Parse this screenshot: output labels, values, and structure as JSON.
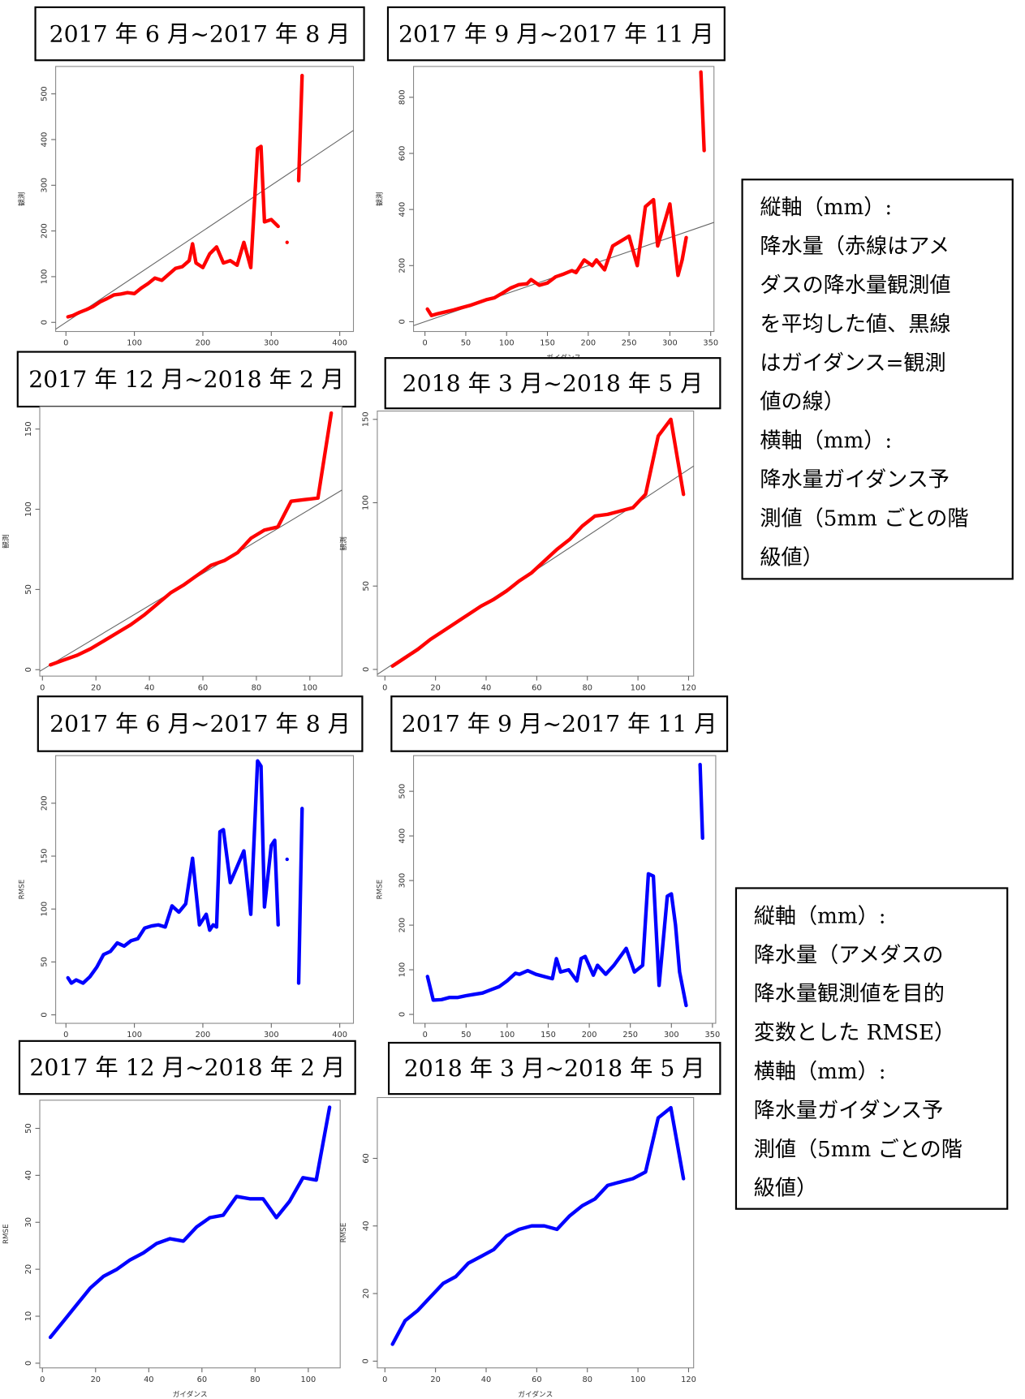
{
  "chart_data": [
    {
      "type": "line",
      "title": "2017 年 6 月~2017 年 8 月",
      "xlabel": "ガイダンス",
      "ylabel": "観測",
      "color": "#ff0000",
      "diagonal": true,
      "x": [
        3,
        10,
        20,
        30,
        40,
        50,
        60,
        70,
        80,
        90,
        100,
        110,
        120,
        130,
        140,
        150,
        160,
        170,
        180,
        185,
        190,
        200,
        210,
        220,
        230,
        240,
        250,
        260,
        270,
        280,
        285,
        290,
        300,
        310,
        null,
        323,
        null,
        340,
        345
      ],
      "values": [
        12,
        15,
        22,
        28,
        35,
        45,
        52,
        60,
        62,
        65,
        63,
        75,
        85,
        97,
        92,
        105,
        118,
        122,
        135,
        172,
        130,
        120,
        150,
        165,
        130,
        135,
        125,
        175,
        120,
        380,
        385,
        220,
        225,
        210,
        null,
        175,
        null,
        310,
        540
      ],
      "xlim": [
        -15,
        420
      ],
      "ylim": [
        -20,
        560
      ],
      "xticks": [
        0,
        100,
        200,
        300,
        400
      ],
      "yticks": [
        0,
        100,
        200,
        300,
        400,
        500
      ]
    },
    {
      "type": "line",
      "title": "2017 年 9 月~2017 年 11 月",
      "xlabel": "ガイダンス",
      "ylabel": "観測",
      "color": "#ff0000",
      "diagonal": true,
      "x": [
        3,
        8,
        15,
        25,
        35,
        45,
        55,
        65,
        75,
        85,
        95,
        105,
        115,
        125,
        130,
        140,
        150,
        160,
        170,
        180,
        185,
        195,
        205,
        210,
        220,
        230,
        250,
        260,
        270,
        280,
        285,
        300,
        310,
        315,
        320,
        null,
        338,
        342
      ],
      "values": [
        45,
        22,
        28,
        35,
        42,
        50,
        58,
        68,
        78,
        85,
        102,
        120,
        132,
        135,
        150,
        130,
        138,
        160,
        170,
        182,
        175,
        220,
        200,
        220,
        185,
        270,
        305,
        200,
        410,
        435,
        270,
        420,
        165,
        220,
        300,
        null,
        890,
        610
      ],
      "xlim": [
        -14,
        354
      ],
      "ylim": [
        -35,
        910
      ],
      "xticks": [
        0,
        50,
        100,
        150,
        200,
        250,
        300,
        350
      ],
      "yticks": [
        0,
        200,
        400,
        600,
        800
      ]
    },
    {
      "type": "line",
      "title": "2017 年 12 月~2018 年 2 月",
      "xlabel": "ガイダンス",
      "ylabel": "観測",
      "color": "#ff0000",
      "diagonal": true,
      "x": [
        3,
        8,
        13,
        18,
        23,
        28,
        33,
        38,
        43,
        48,
        53,
        58,
        63,
        68,
        73,
        78,
        83,
        88,
        93,
        98,
        103,
        108
      ],
      "values": [
        3,
        6,
        9,
        13,
        18,
        23,
        28,
        34,
        41,
        48,
        53,
        59,
        65,
        68,
        73,
        82,
        87,
        89,
        105,
        106,
        107,
        160
      ],
      "xlim": [
        -1,
        112
      ],
      "ylim": [
        -4,
        164
      ],
      "xticks": [
        0,
        20,
        40,
        60,
        80,
        100
      ],
      "yticks": [
        0,
        50,
        100,
        150
      ]
    },
    {
      "type": "line",
      "title": "2018 年 3 月~2018 年 5 月",
      "xlabel": "ガイダンス",
      "ylabel": "観測",
      "color": "#ff0000",
      "diagonal": true,
      "x": [
        3,
        8,
        13,
        18,
        23,
        28,
        33,
        38,
        43,
        48,
        53,
        58,
        63,
        68,
        73,
        78,
        83,
        88,
        93,
        98,
        103,
        108,
        113,
        118
      ],
      "values": [
        2,
        7,
        12,
        18,
        23,
        28,
        33,
        38,
        42,
        47,
        53,
        58,
        65,
        72,
        78,
        86,
        92,
        93,
        95,
        97,
        105,
        140,
        150,
        105
      ],
      "xlim": [
        -3,
        122
      ],
      "ylim": [
        -4,
        155
      ],
      "xticks": [
        0,
        20,
        40,
        60,
        80,
        100,
        120
      ],
      "yticks": [
        0,
        50,
        100,
        150
      ]
    },
    {
      "type": "line",
      "title": "2017 年 6 月~2017 年 8 月",
      "xlabel": "ガイダンス",
      "ylabel": "RMSE",
      "color": "#0000ff",
      "diagonal": false,
      "x": [
        3,
        8,
        15,
        25,
        35,
        45,
        55,
        65,
        75,
        85,
        95,
        105,
        115,
        125,
        135,
        145,
        155,
        165,
        175,
        185,
        195,
        205,
        210,
        215,
        220,
        225,
        230,
        240,
        250,
        260,
        270,
        280,
        285,
        290,
        300,
        305,
        310,
        null,
        323,
        null,
        340,
        345
      ],
      "values": [
        35,
        30,
        33,
        30,
        36,
        45,
        57,
        60,
        68,
        65,
        70,
        72,
        82,
        84,
        85,
        83,
        103,
        97,
        105,
        148,
        85,
        95,
        80,
        85,
        83,
        173,
        175,
        125,
        140,
        155,
        95,
        240,
        235,
        102,
        160,
        165,
        85,
        null,
        147,
        null,
        30,
        195
      ],
      "xlim": [
        -15,
        420
      ],
      "ylim": [
        -8,
        245
      ],
      "xticks": [
        0,
        100,
        200,
        300,
        400
      ],
      "yticks": [
        0,
        50,
        100,
        150,
        200
      ]
    },
    {
      "type": "line",
      "title": "2017 年 9 月~2017 年 11 月",
      "xlabel": "ガイダンス",
      "ylabel": "RMSE",
      "color": "#0000ff",
      "diagonal": false,
      "x": [
        3,
        10,
        20,
        30,
        40,
        50,
        60,
        70,
        80,
        90,
        100,
        110,
        115,
        125,
        135,
        145,
        155,
        160,
        165,
        175,
        185,
        190,
        195,
        205,
        210,
        220,
        230,
        245,
        255,
        265,
        272,
        278,
        285,
        295,
        300,
        305,
        310,
        318,
        null,
        335,
        338
      ],
      "values": [
        85,
        32,
        33,
        38,
        38,
        42,
        45,
        48,
        55,
        62,
        75,
        92,
        90,
        98,
        90,
        85,
        80,
        125,
        95,
        100,
        75,
        125,
        130,
        88,
        110,
        90,
        110,
        148,
        95,
        110,
        315,
        310,
        65,
        265,
        270,
        200,
        95,
        20,
        null,
        560,
        395
      ],
      "xlim": [
        -14,
        354
      ],
      "ylim": [
        -20,
        580
      ],
      "xticks": [
        0,
        50,
        100,
        150,
        200,
        250,
        300,
        350
      ],
      "yticks": [
        0,
        100,
        200,
        300,
        400,
        500
      ]
    },
    {
      "type": "line",
      "title": "2017 年 12 月~2018 年 2 月",
      "xlabel": "ガイダンス",
      "ylabel": "RMSE",
      "color": "#0000ff",
      "diagonal": false,
      "x": [
        3,
        8,
        13,
        18,
        23,
        28,
        33,
        38,
        43,
        48,
        53,
        58,
        63,
        68,
        73,
        78,
        83,
        88,
        93,
        98,
        103,
        108
      ],
      "values": [
        5.5,
        9,
        12.5,
        16,
        18.5,
        20,
        22,
        23.5,
        25.5,
        26.5,
        26,
        29,
        31,
        31.5,
        35.5,
        35,
        35,
        31,
        34.5,
        39.5,
        39,
        54.5
      ],
      "xlim": [
        -1,
        112
      ],
      "ylim": [
        -1,
        56
      ],
      "xticks": [
        0,
        20,
        40,
        60,
        80,
        100
      ],
      "yticks": [
        0,
        10,
        20,
        30,
        40,
        50
      ]
    },
    {
      "type": "line",
      "title": "2018 年 3 月~2018 年 5 月",
      "xlabel": "ガイダンス",
      "ylabel": "RMSE",
      "color": "#0000ff",
      "diagonal": false,
      "x": [
        3,
        8,
        13,
        18,
        23,
        28,
        33,
        38,
        43,
        48,
        53,
        58,
        63,
        68,
        73,
        78,
        83,
        88,
        93,
        98,
        103,
        108,
        113,
        118
      ],
      "values": [
        5,
        12,
        15,
        19,
        23,
        25,
        29,
        31,
        33,
        37,
        39,
        40,
        40,
        39,
        43,
        46,
        48,
        52,
        53,
        54,
        56,
        72,
        75,
        54
      ],
      "xlim": [
        -3,
        122
      ],
      "ylim": [
        -2,
        78
      ],
      "xticks": [
        0,
        20,
        40,
        60,
        80,
        100,
        120
      ],
      "yticks": [
        0,
        20,
        40,
        60
      ]
    }
  ],
  "notes": [
    {
      "lines": [
        "縦軸（mm）:",
        "降水量（赤線はアメ",
        "ダスの降水量観測値",
        "を平均した値、黒線",
        "はガイダンス=観測",
        "値の線）",
        "横軸（mm）:",
        "降水量ガイダンス予",
        "測値（5mm ごとの階",
        "級値）"
      ]
    },
    {
      "lines": [
        "縦軸（mm）:",
        "降水量（アメダスの",
        "降水量観測値を目的",
        "変数とした RMSE）",
        "横軸（mm）:",
        "降水量ガイダンス予",
        "測値（5mm ごとの階",
        "級値）"
      ]
    }
  ]
}
